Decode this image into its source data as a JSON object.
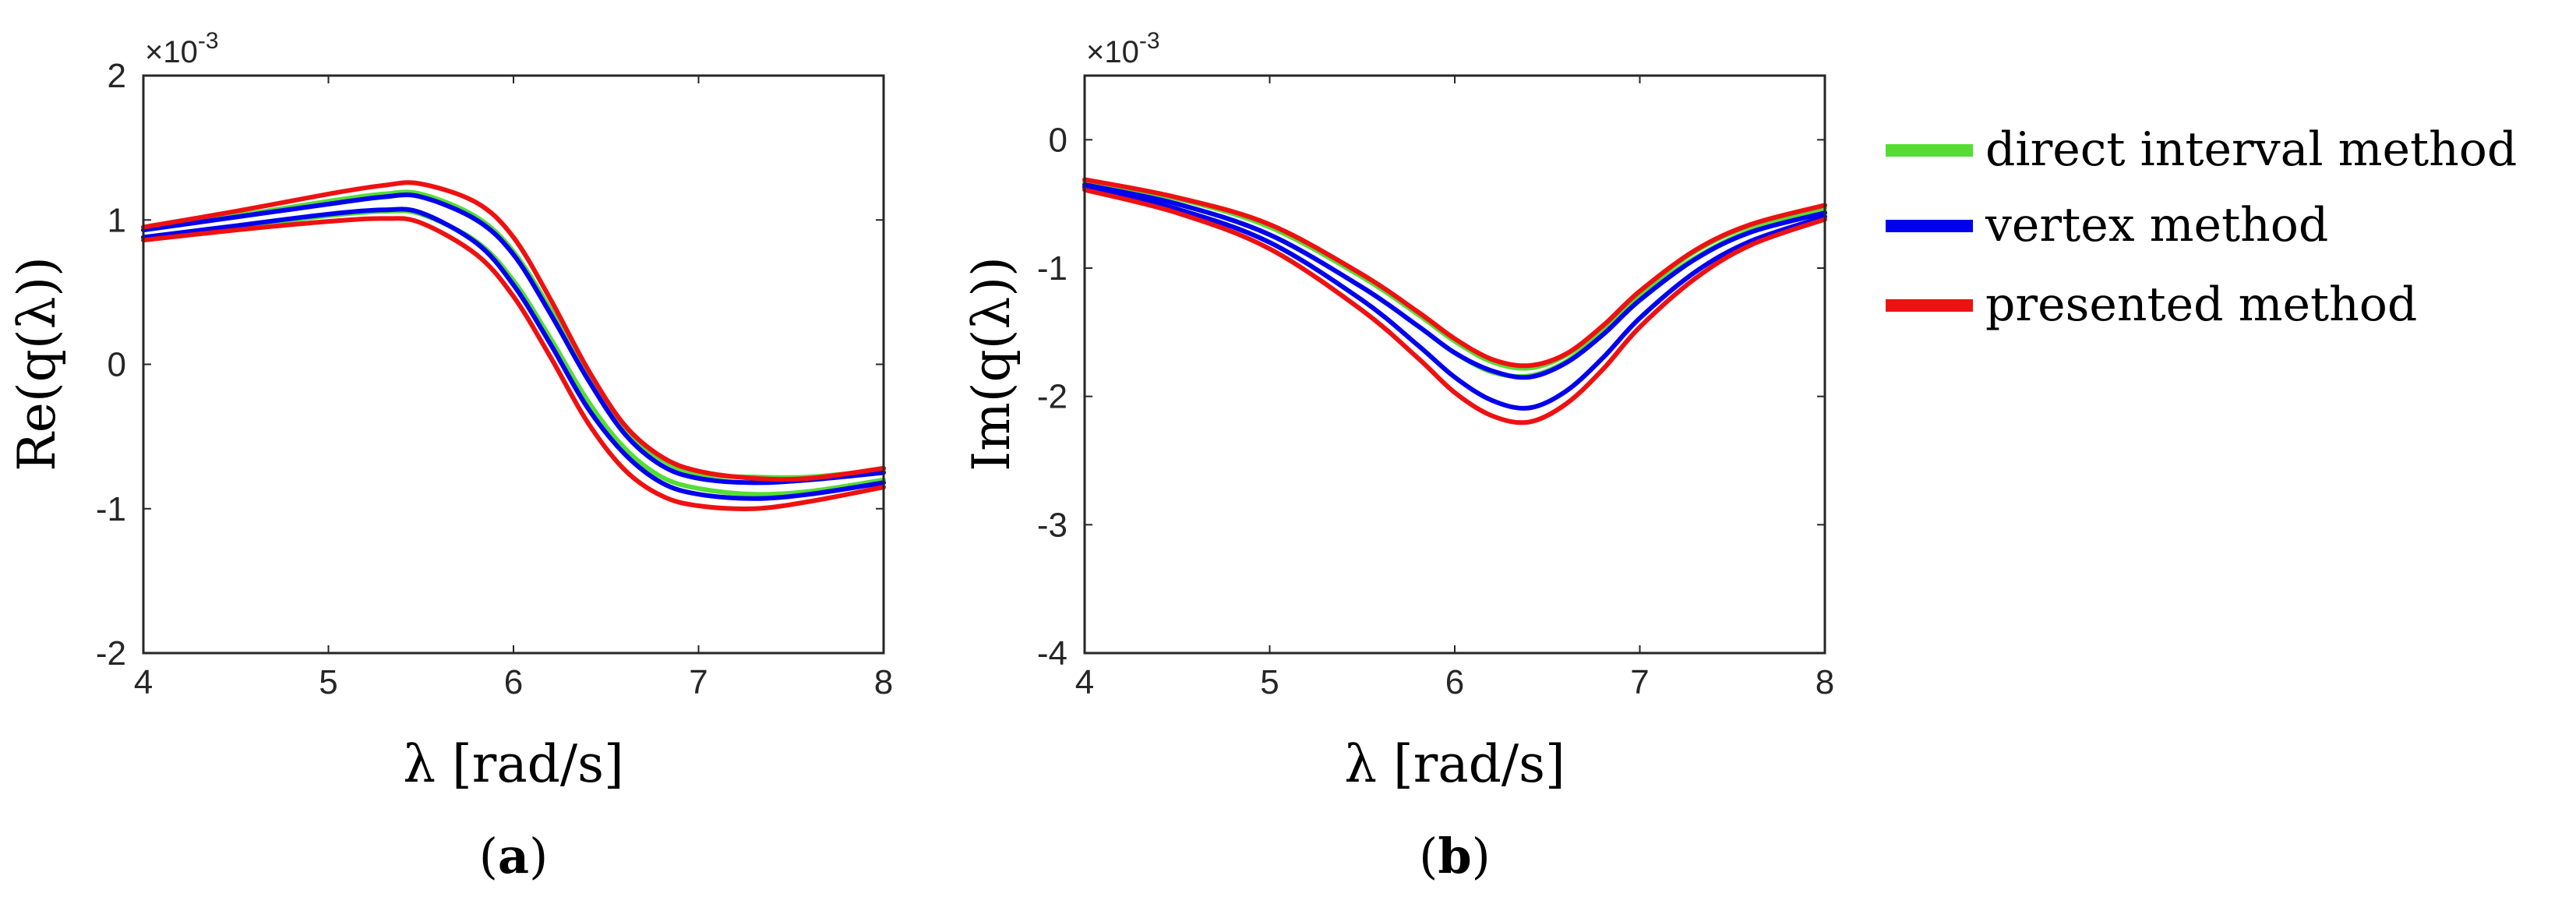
{
  "chart_data": [
    {
      "type": "line",
      "panel_label_open": "(",
      "panel_label_letter": "a",
      "panel_label_close": ")",
      "ylabel": "Re(q(λ))",
      "xlabel": "λ [rad/s]",
      "exponent_label": "×10",
      "exponent_power": "-3",
      "xlim": [
        4,
        8
      ],
      "ylim": [
        -2,
        2
      ],
      "xticks": [
        "4",
        "5",
        "6",
        "7",
        "8"
      ],
      "yticks": [
        "-2",
        "-1",
        "0",
        "1",
        "2"
      ],
      "x": [
        4.0,
        4.5,
        5.0,
        5.3,
        5.5,
        5.8,
        6.0,
        6.2,
        6.4,
        6.6,
        6.8,
        7.0,
        7.3,
        7.6,
        8.0
      ],
      "series": [
        {
          "name": "direct interval method",
          "color": "#55dd33",
          "values": [
            0.88,
            0.95,
            1.03,
            1.06,
            1.04,
            0.85,
            0.58,
            0.18,
            -0.25,
            -0.58,
            -0.78,
            -0.86,
            -0.9,
            -0.88,
            -0.8
          ]
        },
        {
          "name": "direct interval method",
          "color": "#55dd33",
          "values": [
            0.95,
            1.03,
            1.13,
            1.18,
            1.18,
            1.02,
            0.78,
            0.38,
            -0.08,
            -0.45,
            -0.66,
            -0.76,
            -0.78,
            -0.78,
            -0.73
          ]
        },
        {
          "name": "vertex method",
          "color": "#0000ee",
          "values": [
            0.88,
            0.96,
            1.04,
            1.07,
            1.05,
            0.84,
            0.55,
            0.14,
            -0.3,
            -0.62,
            -0.82,
            -0.9,
            -0.93,
            -0.9,
            -0.82
          ]
        },
        {
          "name": "vertex method",
          "color": "#0000ee",
          "values": [
            0.93,
            1.02,
            1.11,
            1.16,
            1.16,
            1.0,
            0.76,
            0.35,
            -0.1,
            -0.48,
            -0.7,
            -0.79,
            -0.82,
            -0.8,
            -0.75
          ]
        },
        {
          "name": "presented method",
          "color": "#ee1111",
          "values": [
            0.86,
            0.93,
            0.99,
            1.01,
            0.98,
            0.76,
            0.47,
            0.05,
            -0.4,
            -0.73,
            -0.91,
            -0.98,
            -1.0,
            -0.95,
            -0.85
          ]
        },
        {
          "name": "presented method",
          "color": "#ee1111",
          "values": [
            0.95,
            1.06,
            1.18,
            1.24,
            1.25,
            1.12,
            0.88,
            0.45,
            -0.03,
            -0.42,
            -0.64,
            -0.74,
            -0.79,
            -0.79,
            -0.72
          ]
        }
      ]
    },
    {
      "type": "line",
      "panel_label_open": "(",
      "panel_label_letter": "b",
      "panel_label_close": ")",
      "ylabel": "Im(q(λ))",
      "xlabel": "λ [rad/s]",
      "exponent_label": "×10",
      "exponent_power": "-3",
      "xlim": [
        4,
        8
      ],
      "ylim": [
        -4,
        0.5
      ],
      "xticks": [
        "4",
        "5",
        "6",
        "7",
        "8"
      ],
      "yticks": [
        "-4",
        "-3",
        "-2",
        "-1",
        "0"
      ],
      "x": [
        4.0,
        4.5,
        5.0,
        5.5,
        5.8,
        6.0,
        6.2,
        6.4,
        6.6,
        6.8,
        7.0,
        7.3,
        7.6,
        8.0
      ],
      "series": [
        {
          "name": "direct interval method",
          "color": "#55dd33",
          "values": [
            -0.33,
            -0.46,
            -0.68,
            -1.07,
            -1.36,
            -1.57,
            -1.73,
            -1.78,
            -1.68,
            -1.46,
            -1.19,
            -0.87,
            -0.67,
            -0.53
          ]
        },
        {
          "name": "direct interval method",
          "color": "#55dd33",
          "values": [
            -0.35,
            -0.5,
            -0.74,
            -1.15,
            -1.45,
            -1.66,
            -1.81,
            -1.84,
            -1.73,
            -1.5,
            -1.23,
            -0.92,
            -0.71,
            -0.56
          ]
        },
        {
          "name": "vertex method",
          "color": "#0000ee",
          "values": [
            -0.35,
            -0.5,
            -0.74,
            -1.15,
            -1.45,
            -1.66,
            -1.8,
            -1.85,
            -1.74,
            -1.52,
            -1.25,
            -0.93,
            -0.72,
            -0.57
          ]
        },
        {
          "name": "vertex method",
          "color": "#0000ee",
          "values": [
            -0.37,
            -0.54,
            -0.8,
            -1.25,
            -1.6,
            -1.85,
            -2.03,
            -2.09,
            -1.96,
            -1.7,
            -1.39,
            -1.03,
            -0.79,
            -0.6
          ]
        },
        {
          "name": "presented method",
          "color": "#ee1111",
          "values": [
            -0.31,
            -0.45,
            -0.66,
            -1.05,
            -1.34,
            -1.55,
            -1.71,
            -1.76,
            -1.67,
            -1.45,
            -1.18,
            -0.86,
            -0.66,
            -0.51
          ]
        },
        {
          "name": "presented method",
          "color": "#ee1111",
          "values": [
            -0.39,
            -0.57,
            -0.85,
            -1.33,
            -1.7,
            -1.97,
            -2.15,
            -2.2,
            -2.06,
            -1.79,
            -1.46,
            -1.08,
            -0.82,
            -0.62
          ]
        }
      ]
    }
  ],
  "legend": {
    "placement": "right",
    "entries": [
      {
        "label": "direct interval method",
        "color": "#55dd33"
      },
      {
        "label": "vertex method",
        "color": "#0000ee"
      },
      {
        "label": "presented method",
        "color": "#ee1111"
      }
    ]
  }
}
